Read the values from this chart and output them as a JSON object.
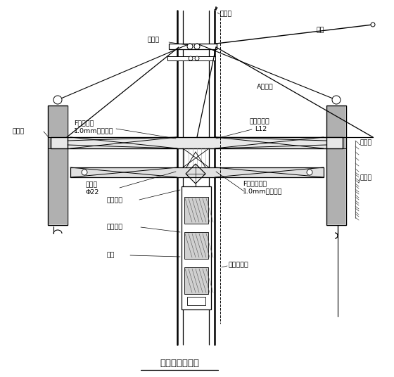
{
  "title": "滑模施工示意图",
  "bg_color": "#ffffff",
  "labels": {
    "lightning_rod": "避雷针",
    "pulley": "天滑轮",
    "handle": "把杆",
    "a_support": "A型支撑",
    "lift_frame": "提升架",
    "f_inner_upper_1": "F型内钢圈",
    "f_inner_upper_2": "1.0mm钢板组合",
    "platform_beam_1": "平台辐射架",
    "platform_beam_2": "L12",
    "steel_pull_1": "钢拉杆",
    "steel_pull_2": "Φ22",
    "f_inner_lower_1": "F型内下钢圈",
    "f_inner_lower_2": "1.0mm钢板组合",
    "safety_net1": "安全网",
    "safety_net2": "安全网",
    "safety_catch": "安全抱刹",
    "cage_guide": "吊笼导绳",
    "cage": "吊笼",
    "hoist_wire": "起重钢丝绳"
  }
}
